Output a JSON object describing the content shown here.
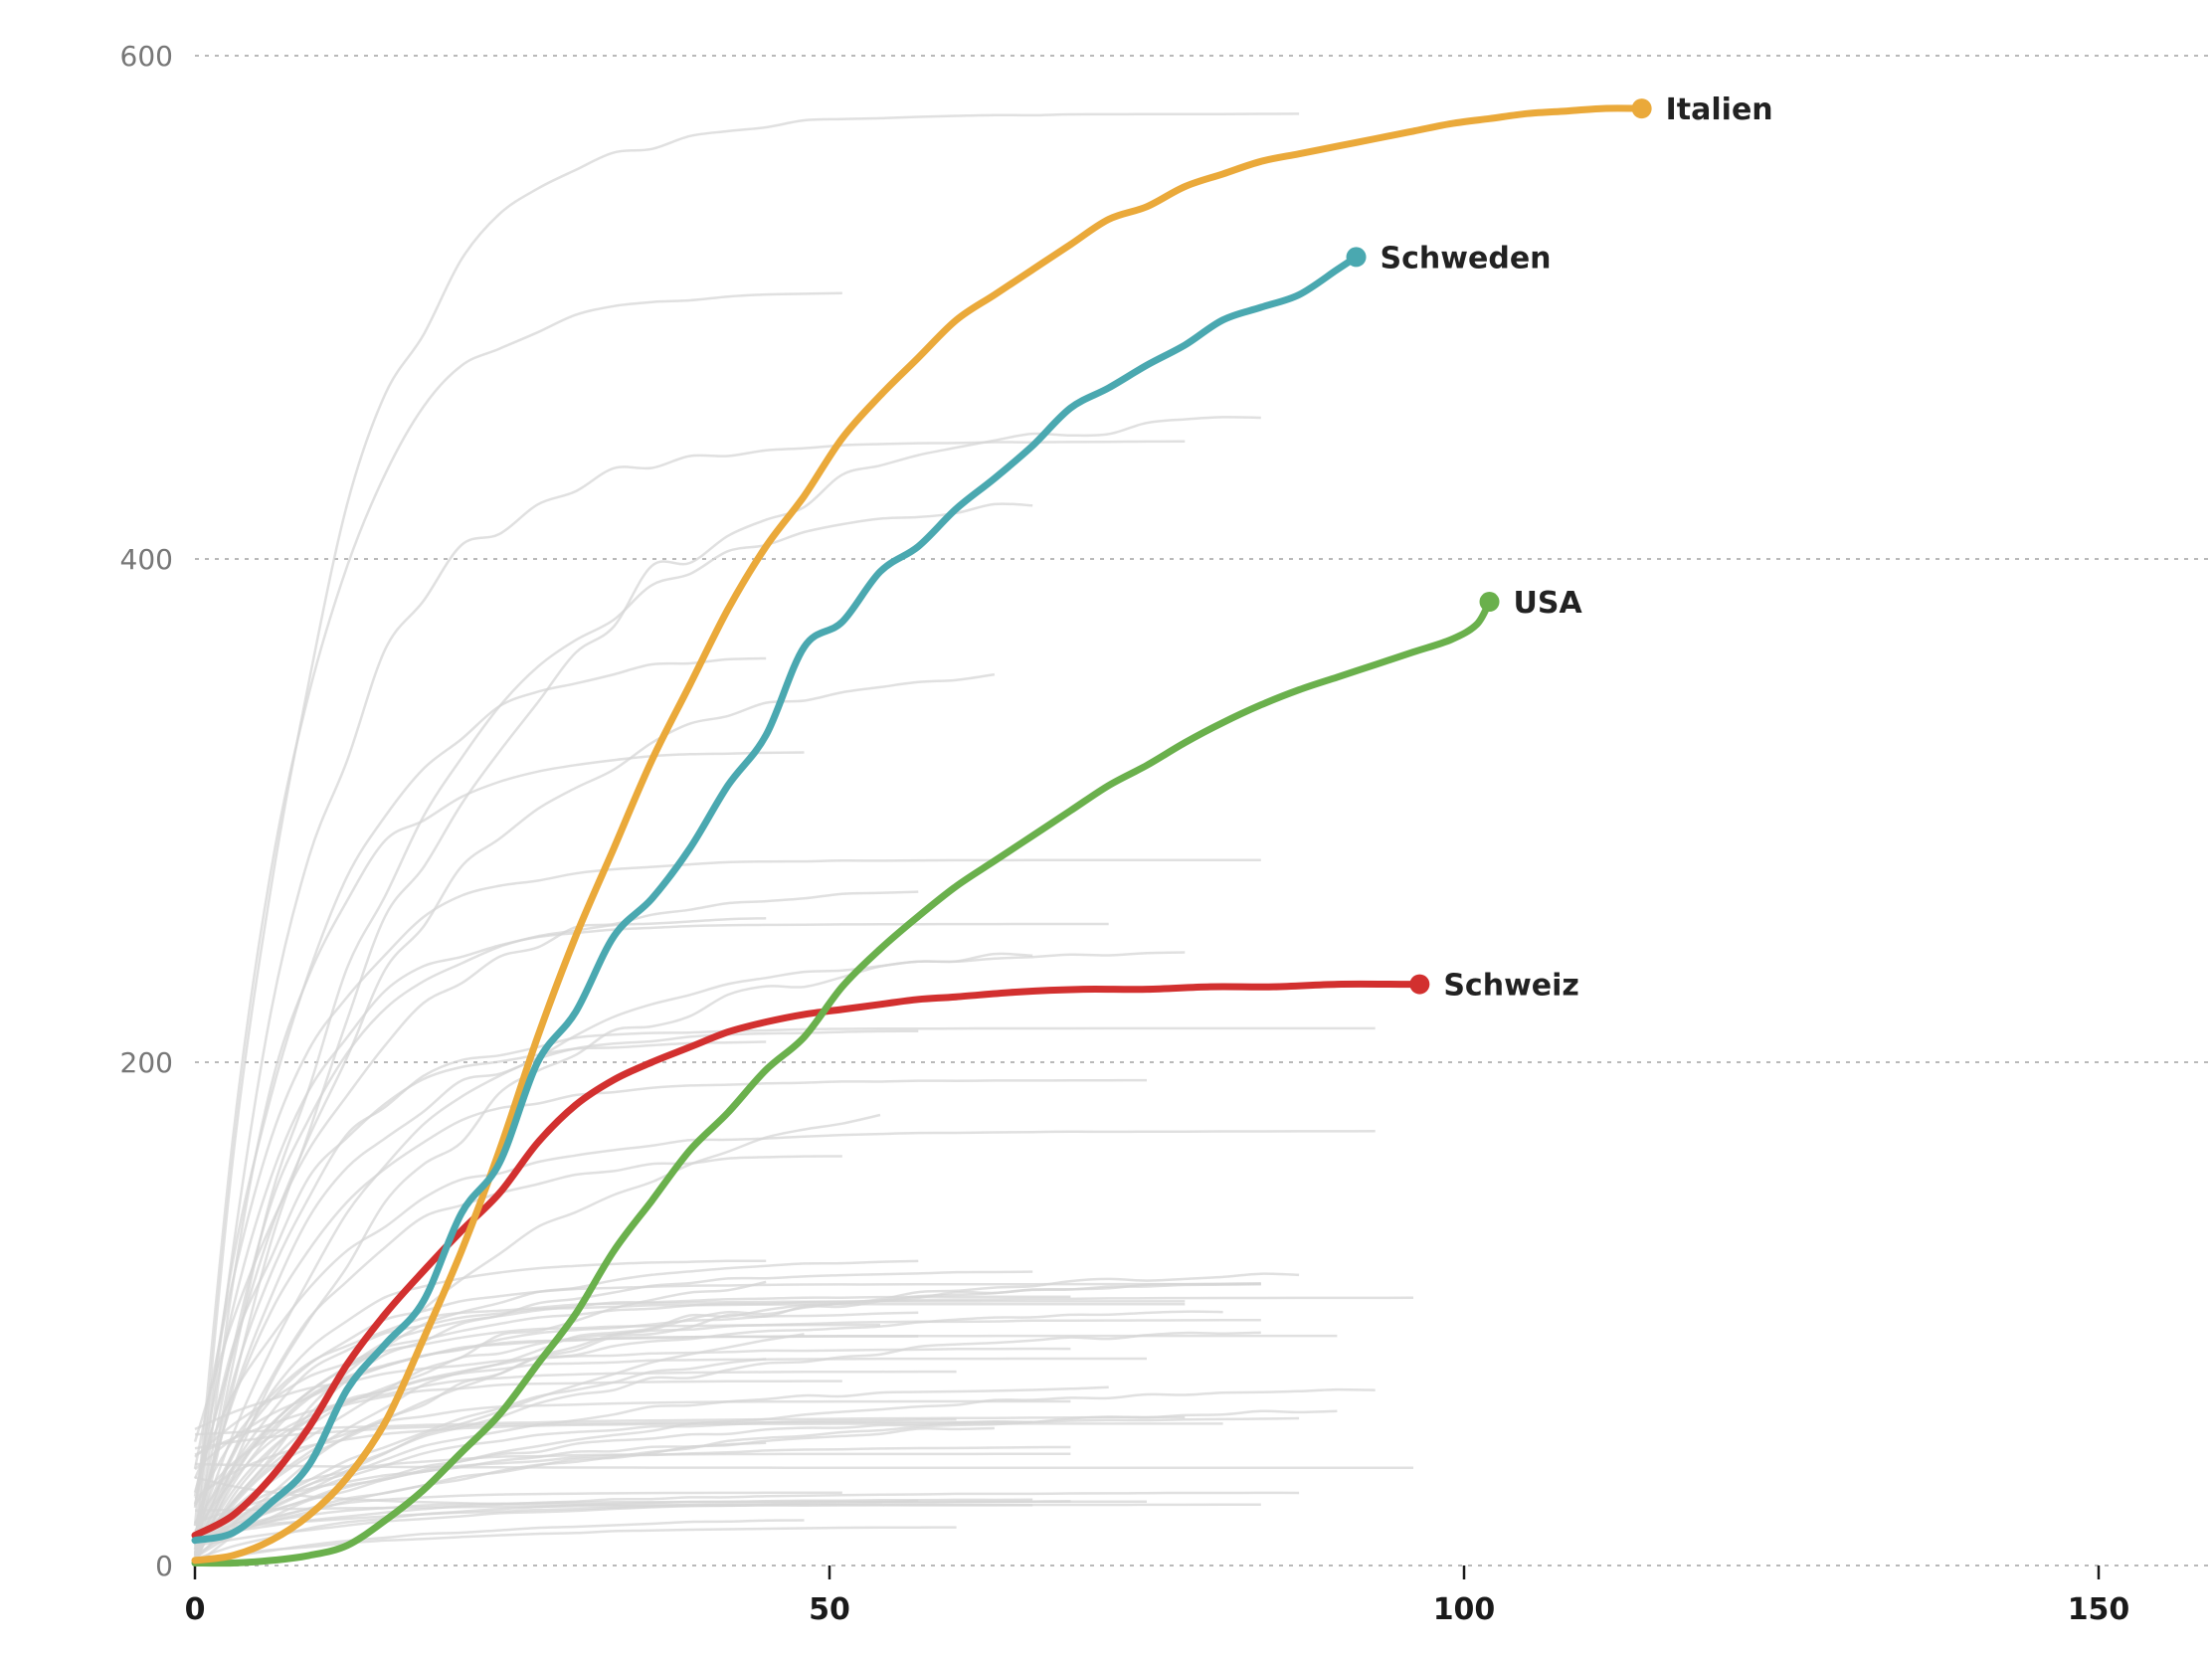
{
  "chart_data": {
    "type": "line",
    "title": "",
    "xlabel": "",
    "ylabel": "",
    "xlim": [
      0,
      158
    ],
    "ylim": [
      0,
      600
    ],
    "x_ticks": [
      0,
      50,
      100,
      150
    ],
    "y_ticks": [
      0,
      200,
      400,
      600
    ],
    "grid": "horizontal dashed",
    "series": [
      {
        "name": "Italien",
        "color": "#eaa93a",
        "x": [
          0,
          3,
          6,
          9,
          12,
          15,
          18,
          21,
          24,
          27,
          30,
          33,
          36,
          39,
          42,
          45,
          48,
          51,
          54,
          57,
          60,
          63,
          66,
          69,
          72,
          75,
          78,
          81,
          84,
          87,
          90,
          93,
          96,
          99,
          102,
          105,
          108,
          111,
          114
        ],
        "y": [
          2,
          4,
          10,
          20,
          35,
          57,
          90,
          125,
          165,
          210,
          250,
          285,
          320,
          350,
          380,
          405,
          425,
          448,
          465,
          480,
          495,
          505,
          515,
          525,
          535,
          540,
          548,
          553,
          558,
          561,
          564,
          567,
          570,
          573,
          575,
          577,
          578,
          579,
          579
        ]
      },
      {
        "name": "Schweden",
        "color": "#4aa8b0",
        "x": [
          0,
          3,
          6,
          9,
          12,
          15,
          18,
          21,
          24,
          27,
          30,
          33,
          36,
          39,
          42,
          45,
          48,
          51,
          54,
          57,
          60,
          63,
          66,
          69,
          72,
          75,
          78,
          81,
          84,
          87,
          90,
          91.5
        ],
        "y": [
          10,
          13,
          25,
          40,
          70,
          88,
          105,
          140,
          160,
          200,
          220,
          250,
          265,
          285,
          310,
          330,
          365,
          375,
          395,
          405,
          420,
          432,
          445,
          460,
          468,
          477,
          485,
          495,
          500,
          505,
          515,
          520
        ]
      },
      {
        "name": "USA",
        "color": "#6ab04c",
        "x": [
          0,
          3,
          6,
          9,
          12,
          15,
          18,
          21,
          24,
          27,
          30,
          33,
          36,
          39,
          42,
          45,
          48,
          51,
          54,
          57,
          60,
          63,
          66,
          69,
          72,
          75,
          78,
          81,
          84,
          87,
          90,
          93,
          96,
          99,
          101,
          102
        ],
        "y": [
          1,
          1,
          2,
          4,
          8,
          18,
          30,
          45,
          60,
          80,
          100,
          125,
          145,
          165,
          180,
          197,
          210,
          230,
          245,
          258,
          270,
          280,
          290,
          300,
          310,
          318,
          327,
          335,
          342,
          348,
          353,
          358,
          363,
          368,
          374,
          383
        ]
      },
      {
        "name": "Schweiz",
        "color": "#d2302f",
        "x": [
          0,
          3,
          6,
          9,
          12,
          15,
          18,
          21,
          24,
          27,
          30,
          33,
          36,
          39,
          42,
          45,
          48,
          51,
          54,
          57,
          60,
          65,
          70,
          75,
          80,
          85,
          90,
          95,
          96.5
        ],
        "y": [
          12,
          20,
          35,
          55,
          80,
          100,
          117,
          133,
          148,
          168,
          183,
          193,
          200,
          206,
          212,
          216,
          219,
          221,
          223,
          225,
          226,
          228,
          229,
          229,
          230,
          230,
          231,
          231,
          231
        ]
      }
    ]
  }
}
